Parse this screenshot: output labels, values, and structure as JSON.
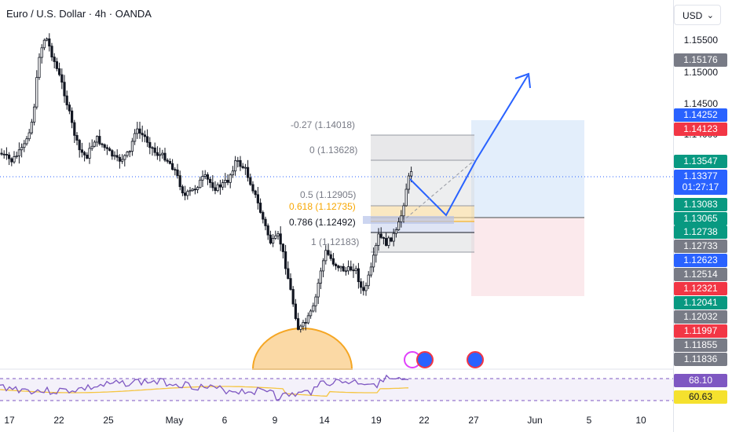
{
  "header": {
    "title": "Euro / U.S. Dollar · 4h · OANDA",
    "currency": "USD"
  },
  "price_axis": {
    "ticks": [
      "1.15500",
      "1.15000",
      "1.14500",
      "1.14000"
    ],
    "tags": [
      {
        "value": "1.15176",
        "color": "#787b86"
      },
      {
        "value": "1.14252",
        "color": "#2962ff"
      },
      {
        "value": "1.14123",
        "color": "#f23645"
      },
      {
        "value": "1.13547",
        "color": "#089981"
      },
      {
        "value": "1.13377",
        "sub": "01:27:17",
        "color": "#2962ff"
      },
      {
        "value": "1.13083",
        "color": "#089981"
      },
      {
        "value": "1.13065",
        "color": "#089981"
      },
      {
        "value": "1.12738",
        "color": "#089981"
      },
      {
        "value": "1.12733",
        "color": "#787b86"
      },
      {
        "value": "1.12623",
        "color": "#2962ff"
      },
      {
        "value": "1.12514",
        "color": "#787b86"
      },
      {
        "value": "1.12321",
        "color": "#f23645"
      },
      {
        "value": "1.12041",
        "color": "#089981"
      },
      {
        "value": "1.12032",
        "color": "#787b86"
      },
      {
        "value": "1.11997",
        "color": "#f23645"
      },
      {
        "value": "1.11855",
        "color": "#787b86"
      },
      {
        "value": "1.11836",
        "color": "#787b86"
      }
    ]
  },
  "time_axis": [
    "17",
    "22",
    "25",
    "May",
    "6",
    "9",
    "14",
    "19",
    "22",
    "27",
    "Jun",
    "5",
    "10"
  ],
  "fibonacci": [
    {
      "label": "-0.27 (1.14018)",
      "color": "#787b86"
    },
    {
      "label": "0 (1.13628)",
      "color": "#787b86"
    },
    {
      "label": "0.5 (1.12905)",
      "color": "#787b86"
    },
    {
      "label": "0.618 (1.12735)",
      "color": "#f7a600"
    },
    {
      "label": "0.786 (1.12492)",
      "color": "#131722"
    },
    {
      "label": "1 (1.12183)",
      "color": "#787b86"
    }
  ],
  "rsi": {
    "tags": [
      {
        "value": "68.10",
        "color": "#7e57c2"
      },
      {
        "value": "60.63",
        "color": "#f5e12e"
      }
    ]
  },
  "colors": {
    "up": "#089981",
    "down": "#f23645",
    "candle": "#131722",
    "projection": "#2962ff",
    "rsi": "#7e57c2",
    "rsi_ma": "#f5c542"
  }
}
